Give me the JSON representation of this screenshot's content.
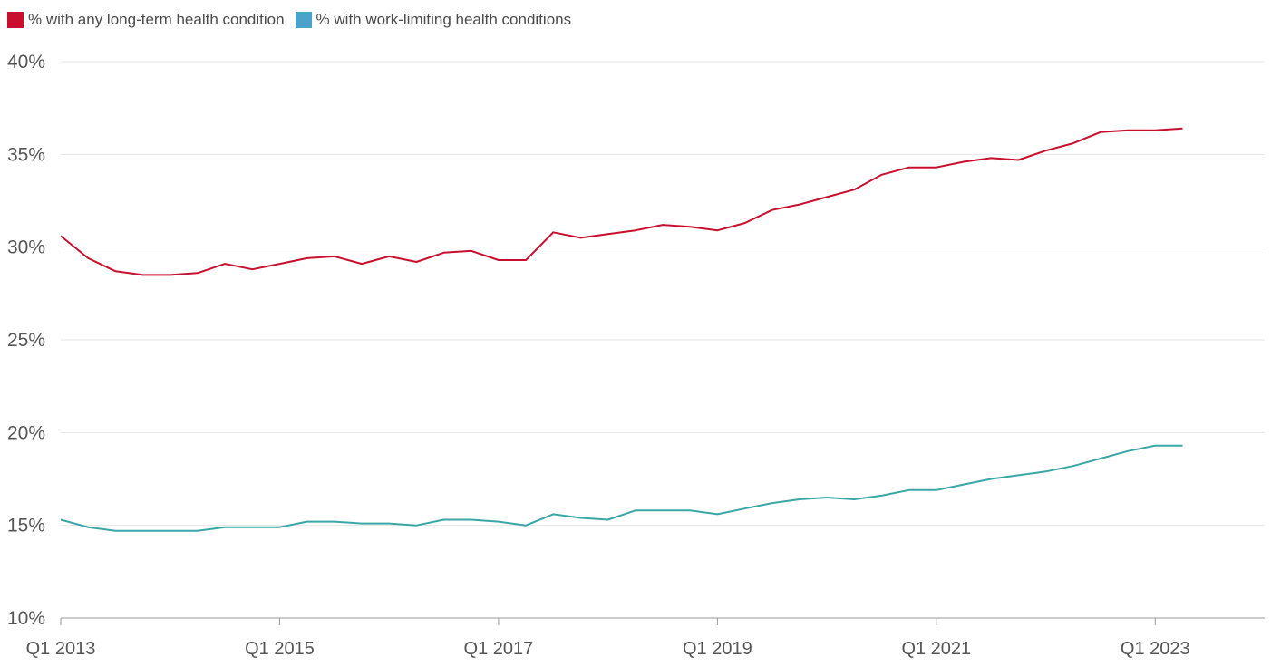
{
  "chart_data": {
    "type": "line",
    "title": "",
    "xlabel": "",
    "ylabel": "",
    "ylim": [
      10,
      40
    ],
    "yticks": [
      10,
      15,
      20,
      25,
      30,
      35,
      40
    ],
    "ytick_labels": [
      "10%",
      "15%",
      "20%",
      "25%",
      "30%",
      "35%",
      "40%"
    ],
    "xticks": [
      {
        "x": 0,
        "label": "Q1 2013"
      },
      {
        "x": 8,
        "label": "Q1 2015"
      },
      {
        "x": 16,
        "label": "Q1 2017"
      },
      {
        "x": 24,
        "label": "Q1 2019"
      },
      {
        "x": 32,
        "label": "Q1 2021"
      },
      {
        "x": 40,
        "label": "Q1 2023"
      }
    ],
    "x_range": [
      0,
      44
    ],
    "grid": true,
    "legend_placement": "top-left",
    "series": [
      {
        "name": "% with any long-term health condition",
        "color": "#c8102e",
        "values": [
          30.6,
          29.4,
          28.7,
          28.5,
          28.5,
          28.6,
          29.1,
          28.8,
          29.1,
          29.4,
          29.5,
          29.1,
          29.5,
          29.2,
          29.7,
          29.8,
          29.3,
          29.3,
          30.8,
          30.5,
          30.7,
          30.9,
          31.2,
          31.1,
          30.9,
          31.3,
          32.0,
          32.3,
          32.7,
          33.1,
          33.9,
          34.3,
          34.3,
          34.6,
          34.8,
          34.7,
          35.2,
          35.6,
          36.2,
          36.3,
          36.3,
          36.4
        ]
      },
      {
        "name": "% with work-limiting health conditions",
        "color": "#3aa6a6",
        "legend_color": "#4aa3c8",
        "values": [
          15.3,
          14.9,
          14.7,
          14.7,
          14.7,
          14.7,
          14.9,
          14.9,
          14.9,
          15.2,
          15.2,
          15.1,
          15.1,
          15.0,
          15.3,
          15.3,
          15.2,
          15.0,
          15.6,
          15.4,
          15.3,
          15.8,
          15.8,
          15.8,
          15.6,
          15.9,
          16.2,
          16.4,
          16.5,
          16.4,
          16.6,
          16.9,
          16.9,
          17.2,
          17.5,
          17.7,
          17.9,
          18.2,
          18.6,
          19.0,
          19.3,
          19.3
        ]
      }
    ]
  }
}
